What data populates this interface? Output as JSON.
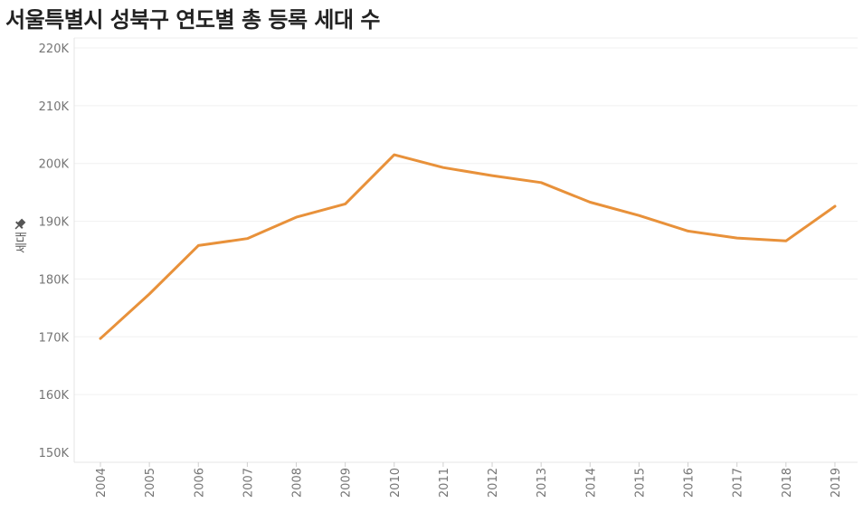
{
  "chart_data": {
    "type": "line",
    "title": "서울특별시 성북구 연도별 총 등록 세대 수",
    "ylabel": "세대",
    "x": [
      "2004",
      "2005",
      "2006",
      "2007",
      "2008",
      "2009",
      "2010",
      "2011",
      "2012",
      "2013",
      "2014",
      "2015",
      "2016",
      "2017",
      "2018",
      "2019"
    ],
    "y_ticks": [
      "150K",
      "160K",
      "170K",
      "180K",
      "190K",
      "200K",
      "210K",
      "220K"
    ],
    "ylim": [
      150000,
      220000
    ],
    "series": [
      {
        "color": "#e8913a",
        "values": [
          169700,
          177400,
          185800,
          187000,
          190700,
          193000,
          201500,
          199300,
          197900,
          196700,
          193300,
          191000,
          188300,
          187100,
          186600,
          192600
        ]
      }
    ],
    "grid": "horizontal",
    "legend": "none"
  }
}
